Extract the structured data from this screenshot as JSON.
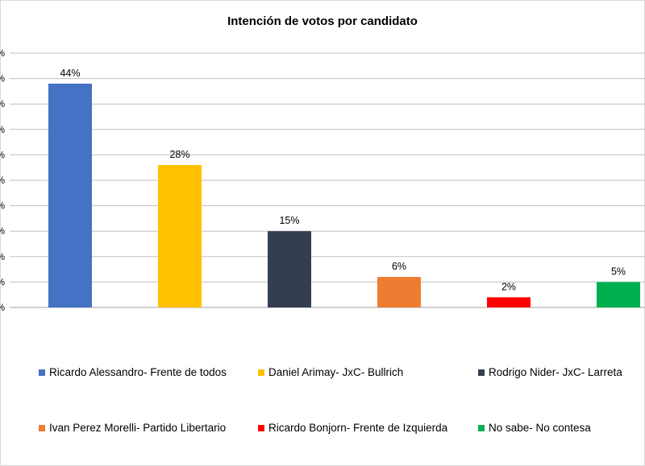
{
  "chart_data": {
    "type": "bar",
    "title": "Intención de votos por  candidato",
    "categories": [
      "Ricardo Alessandro- Frente de todos",
      "Daniel Arimay- JxC- Bullrich",
      "Rodrigo Nider- JxC- Larreta",
      "Ivan Perez Morelli- Partido Libertario",
      "Ricardo Bonjorn- Frente de Izquierda",
      "No sabe- No contesa"
    ],
    "values": [
      44,
      28,
      15,
      6,
      2,
      5
    ],
    "data_labels": [
      "44%",
      "28%",
      "15%",
      "6%",
      "2%",
      "5%"
    ],
    "y_tick_labels": [
      "%",
      "%",
      "%",
      "%",
      "%",
      "%",
      "%",
      "%",
      "%",
      "%",
      "%"
    ],
    "colors": [
      "#4472c4",
      "#ffc000",
      "#333f50",
      "#ed7d31",
      "#ff0000",
      "#00b050"
    ],
    "ylim": [
      0,
      50
    ],
    "grid": true,
    "legend_position": "bottom"
  }
}
